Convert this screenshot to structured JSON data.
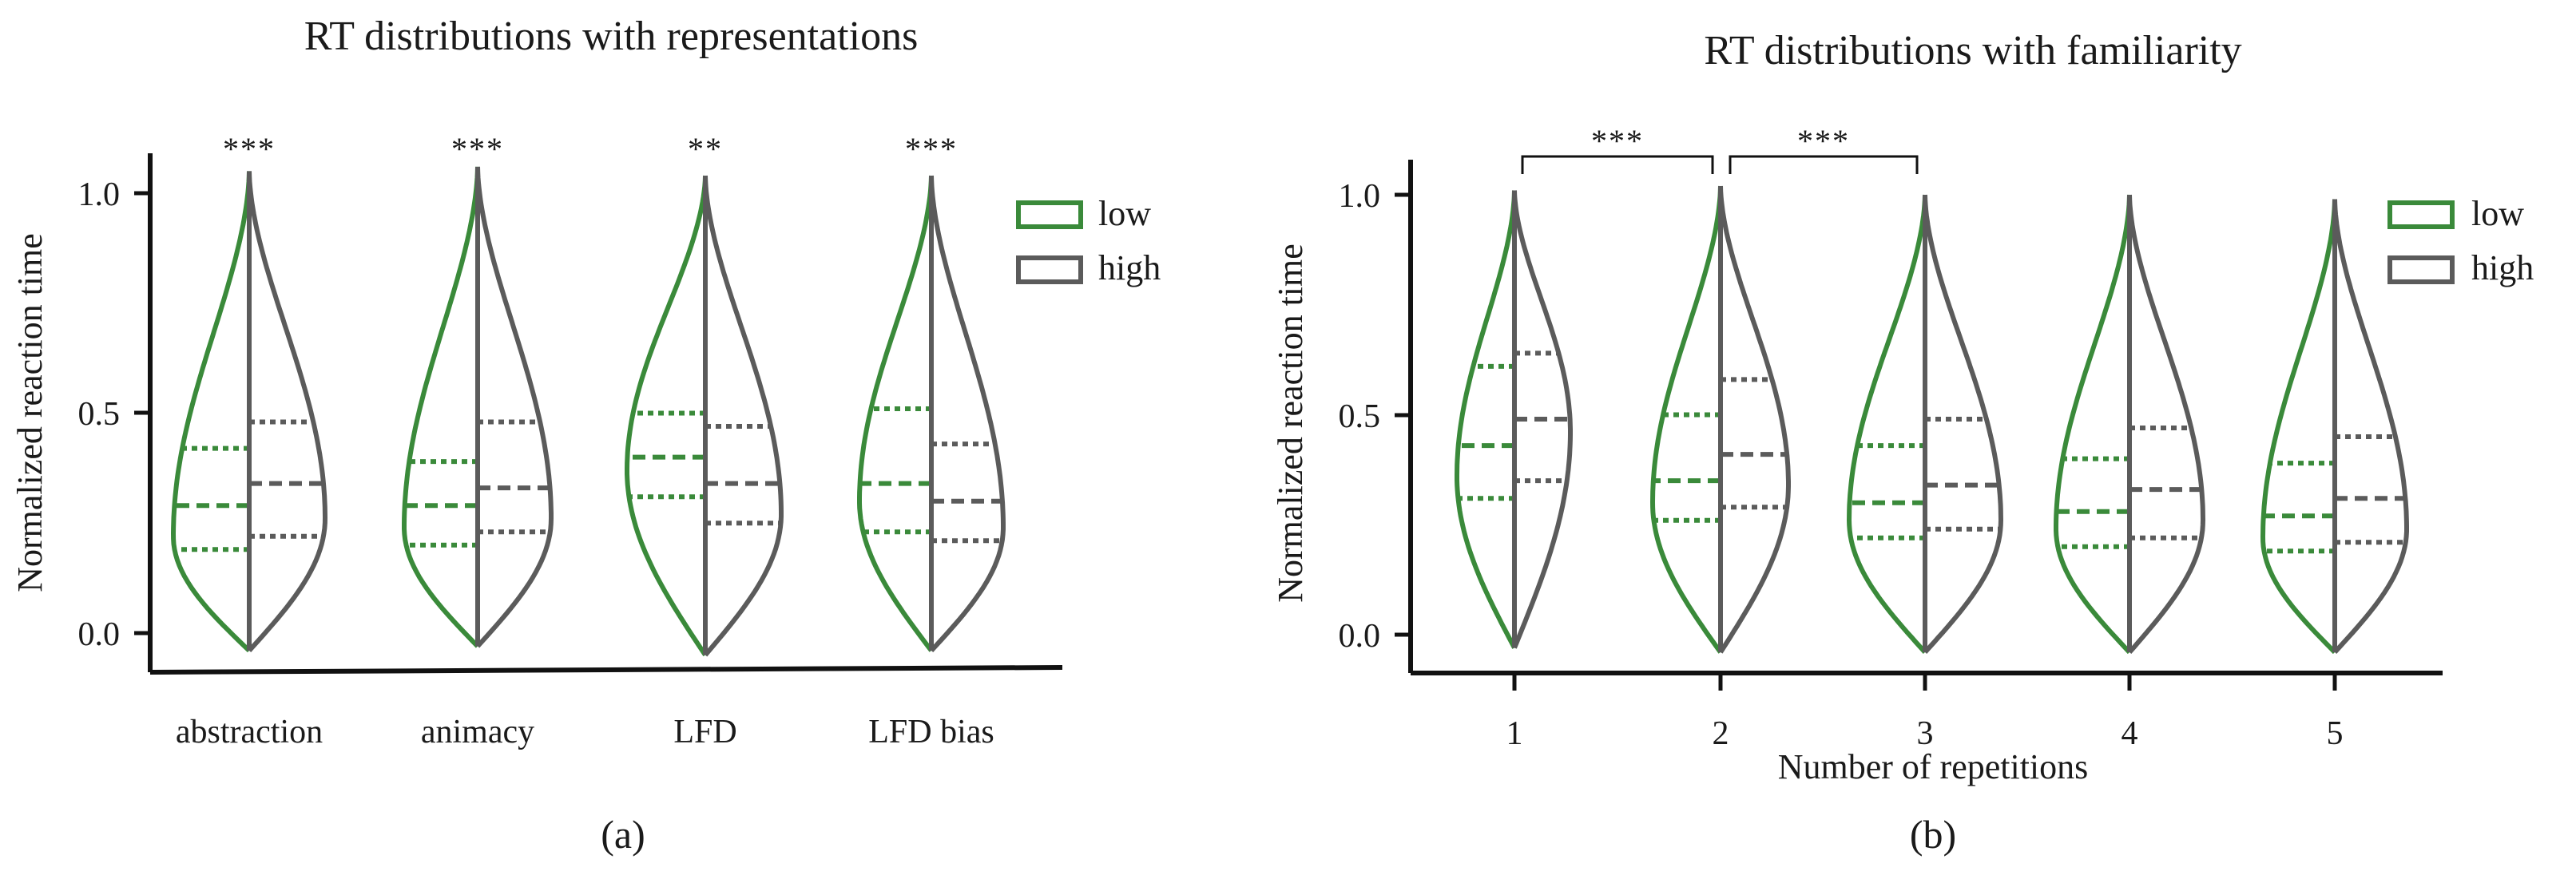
{
  "colors": {
    "low": "#3a8a3a",
    "high": "#5b5b5b",
    "axis": "#111111"
  },
  "chart_data": [
    {
      "type": "violin",
      "title": "RT distributions with representations",
      "panel_label": "(a)",
      "xlabel": "",
      "ylabel": "Normalized reaction time",
      "ylim": [
        -0.09,
        1.1
      ],
      "yticks": [
        0.0,
        0.5,
        1.0
      ],
      "ytick_labels": [
        "0.0",
        "0.5",
        "1.0"
      ],
      "categories": [
        "abstraction",
        "animacy",
        "LFD",
        "LFD bias"
      ],
      "significance": [
        "***",
        "***",
        "**",
        "***"
      ],
      "brackets": [],
      "legend": [
        "low",
        "high"
      ],
      "series": [
        {
          "name": "low",
          "quartiles": [
            [
              0.19,
              0.29,
              0.42
            ],
            [
              0.2,
              0.29,
              0.39
            ],
            [
              0.31,
              0.4,
              0.5
            ],
            [
              0.23,
              0.34,
              0.51
            ]
          ],
          "mode": [
            0.22,
            0.24,
            0.37,
            0.3
          ],
          "width": [
            0.95,
            0.92,
            0.98,
            0.9
          ],
          "range": [
            [
              -0.04,
              1.05
            ],
            [
              -0.03,
              1.06
            ],
            [
              -0.05,
              1.04
            ],
            [
              -0.04,
              1.04
            ]
          ]
        },
        {
          "name": "high",
          "quartiles": [
            [
              0.22,
              0.34,
              0.48
            ],
            [
              0.23,
              0.33,
              0.48
            ],
            [
              0.25,
              0.34,
              0.47
            ],
            [
              0.21,
              0.3,
              0.43
            ]
          ],
          "mode": [
            0.26,
            0.26,
            0.27,
            0.24
          ],
          "width": [
            0.95,
            0.92,
            0.95,
            0.9
          ],
          "range": [
            [
              -0.04,
              1.05
            ],
            [
              -0.03,
              1.06
            ],
            [
              -0.05,
              1.04
            ],
            [
              -0.04,
              1.04
            ]
          ]
        }
      ]
    },
    {
      "type": "violin",
      "title": "RT distributions with familiarity",
      "panel_label": "(b)",
      "xlabel": "Number of repetitions",
      "ylabel": "Normalized reaction time",
      "ylim": [
        -0.09,
        1.1
      ],
      "yticks": [
        0.0,
        0.5,
        1.0
      ],
      "ytick_labels": [
        "0.0",
        "0.5",
        "1.0"
      ],
      "categories": [
        "1",
        "2",
        "3",
        "4",
        "5"
      ],
      "significance": [],
      "brackets": [
        {
          "from": 0,
          "to": 1,
          "label": "***"
        },
        {
          "from": 1,
          "to": 2,
          "label": "***"
        }
      ],
      "legend": [
        "low",
        "high"
      ],
      "series": [
        {
          "name": "low",
          "quartiles": [
            [
              0.31,
              0.43,
              0.61
            ],
            [
              0.26,
              0.35,
              0.5
            ],
            [
              0.22,
              0.3,
              0.43
            ],
            [
              0.2,
              0.28,
              0.4
            ],
            [
              0.19,
              0.27,
              0.39
            ]
          ],
          "mode": [
            0.36,
            0.3,
            0.26,
            0.24,
            0.22
          ],
          "width": [
            0.72,
            0.85,
            0.95,
            0.92,
            0.9
          ],
          "range": [
            [
              -0.03,
              1.01
            ],
            [
              -0.04,
              1.02
            ],
            [
              -0.04,
              1.0
            ],
            [
              -0.04,
              1.0
            ],
            [
              -0.04,
              0.99
            ]
          ]
        },
        {
          "name": "high",
          "quartiles": [
            [
              0.35,
              0.49,
              0.64
            ],
            [
              0.29,
              0.41,
              0.58
            ],
            [
              0.24,
              0.34,
              0.49
            ],
            [
              0.22,
              0.33,
              0.47
            ],
            [
              0.21,
              0.31,
              0.45
            ]
          ],
          "mode": [
            0.46,
            0.34,
            0.26,
            0.26,
            0.24
          ],
          "width": [
            0.7,
            0.85,
            0.95,
            0.92,
            0.9
          ],
          "range": [
            [
              -0.03,
              1.01
            ],
            [
              -0.04,
              1.02
            ],
            [
              -0.04,
              1.0
            ],
            [
              -0.04,
              1.0
            ],
            [
              -0.04,
              0.99
            ]
          ]
        }
      ]
    }
  ]
}
